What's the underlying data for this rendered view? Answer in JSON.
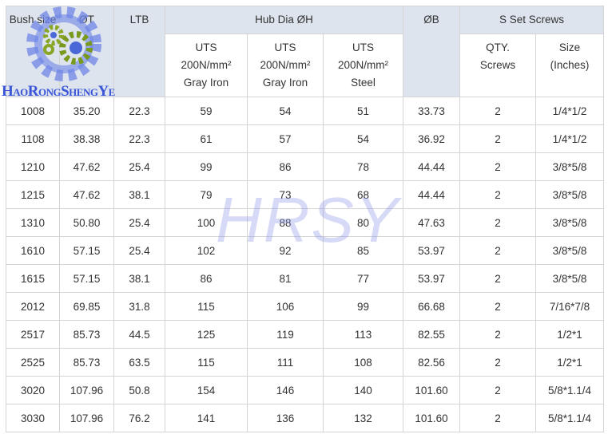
{
  "logo_text": "HaoRongShengYe",
  "watermark": "HRSY",
  "header": {
    "bush_size": "Bush size",
    "ot": "ØT",
    "ltb": "LTB",
    "hub_dia": "Hub Dia ØH",
    "ob": "ØB",
    "set_screws": "S Set Screws",
    "sub": [
      [
        "UTS",
        "200N/mm²",
        "Gray Iron"
      ],
      [
        "UTS",
        "200N/mm²",
        "Gray Iron"
      ],
      [
        "UTS",
        "200N/mm²",
        "Steel"
      ],
      [
        "QTY.",
        "Screws"
      ],
      [
        "Size",
        "(Inches)"
      ]
    ]
  },
  "rows": [
    [
      "1008",
      "35.20",
      "22.3",
      "59",
      "54",
      "51",
      "33.73",
      "2",
      "1/4*1/2"
    ],
    [
      "1108",
      "38.38",
      "22.3",
      "61",
      "57",
      "54",
      "36.92",
      "2",
      "1/4*1/2"
    ],
    [
      "1210",
      "47.62",
      "25.4",
      "99",
      "86",
      "78",
      "44.44",
      "2",
      "3/8*5/8"
    ],
    [
      "1215",
      "47.62",
      "38.1",
      "79",
      "73",
      "68",
      "44.44",
      "2",
      "3/8*5/8"
    ],
    [
      "1310",
      "50.80",
      "25.4",
      "100",
      "88",
      "80",
      "47.63",
      "2",
      "3/8*5/8"
    ],
    [
      "1610",
      "57.15",
      "25.4",
      "102",
      "92",
      "85",
      "53.97",
      "2",
      "3/8*5/8"
    ],
    [
      "1615",
      "57.15",
      "38.1",
      "86",
      "81",
      "77",
      "53.97",
      "2",
      "3/8*5/8"
    ],
    [
      "2012",
      "69.85",
      "31.8",
      "115",
      "106",
      "99",
      "66.68",
      "2",
      "7/16*7/8"
    ],
    [
      "2517",
      "85.73",
      "44.5",
      "125",
      "119",
      "113",
      "82.55",
      "2",
      "1/2*1"
    ],
    [
      "2525",
      "85.73",
      "63.5",
      "115",
      "111",
      "108",
      "82.56",
      "2",
      "1/2*1"
    ],
    [
      "3020",
      "107.96",
      "50.8",
      "154",
      "146",
      "140",
      "101.60",
      "2",
      "5/8*1.1/4"
    ],
    [
      "3030",
      "107.96",
      "76.2",
      "141",
      "136",
      "132",
      "101.60",
      "2",
      "5/8*1.1/4"
    ]
  ]
}
